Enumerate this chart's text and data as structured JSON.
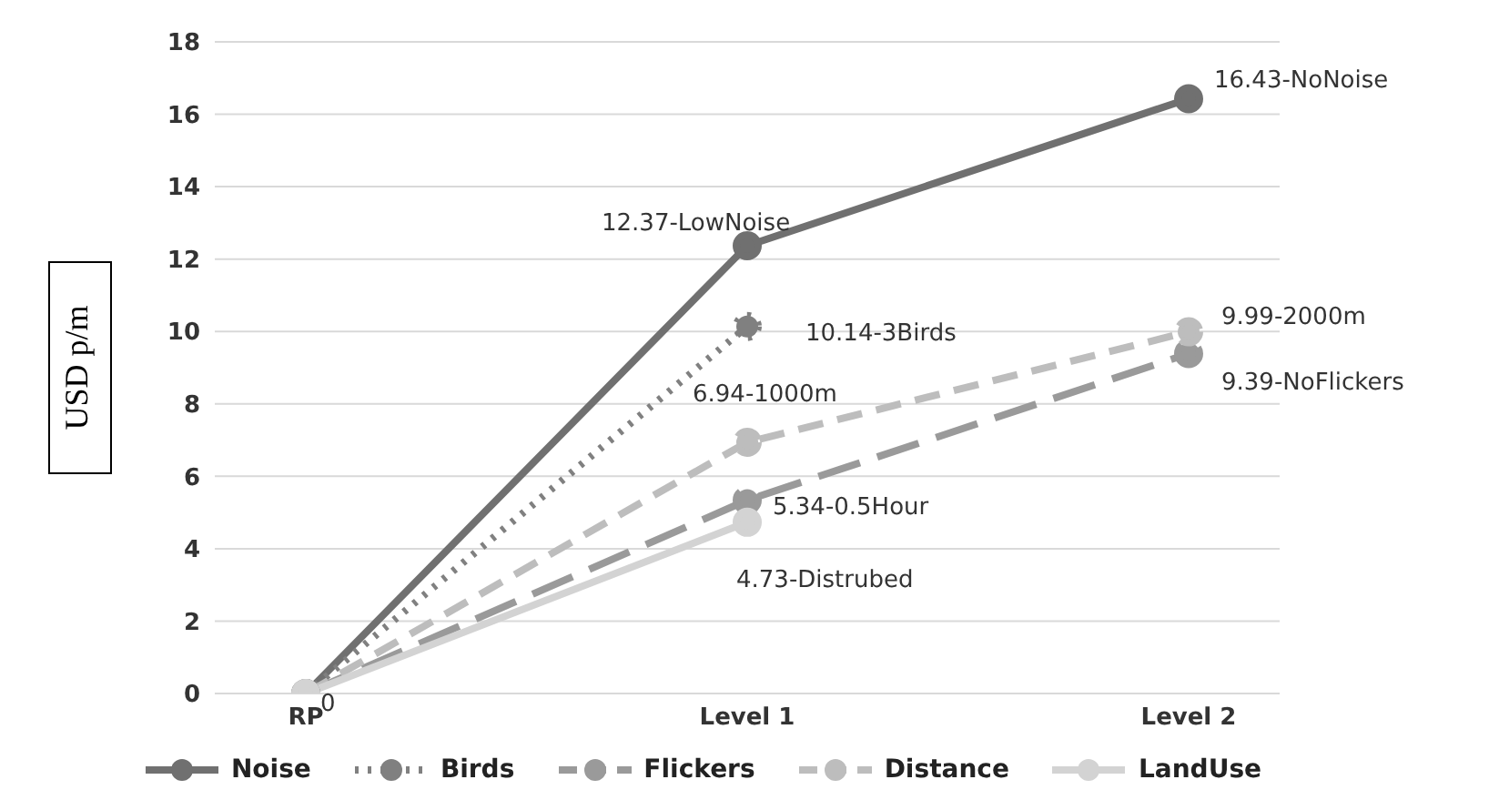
{
  "chart_data": {
    "type": "line",
    "ylabel": "USD p/m",
    "categories": [
      "RP",
      "Level 1",
      "Level 2"
    ],
    "series": [
      {
        "name": "Noise",
        "color": "#707070",
        "values": [
          0,
          12.37,
          16.43
        ],
        "line_style": "solid"
      },
      {
        "name": "Birds",
        "color": "#808080",
        "values": [
          0,
          10.14,
          null
        ],
        "line_style": "dotted"
      },
      {
        "name": "Flickers",
        "color": "#9a9a9a",
        "values": [
          0,
          5.34,
          9.39
        ],
        "line_style": "dashed"
      },
      {
        "name": "Distance",
        "color": "#bdbdbd",
        "values": [
          0,
          6.94,
          9.99
        ],
        "line_style": "dashed"
      },
      {
        "name": "LandUse",
        "color": "#d3d3d3",
        "values": [
          0,
          4.73,
          null
        ],
        "line_style": "solid"
      }
    ],
    "ylim": [
      0,
      18
    ],
    "yticks": [
      0,
      2,
      4,
      6,
      8,
      10,
      12,
      14,
      16,
      18
    ],
    "grid": "y",
    "legend": "bottom",
    "marker": "circle",
    "annotations": [
      {
        "text": "0",
        "x": "RP",
        "y": 0
      },
      {
        "text": "12.37-LowNoise",
        "x": "Level 1",
        "y": 12.37
      },
      {
        "text": "16.43-NoNoise",
        "x": "Level 2",
        "y": 16.43
      },
      {
        "text": "10.14-3Birds",
        "x": "Level 1",
        "y": 10.14
      },
      {
        "text": "6.94-1000m",
        "x": "Level 1",
        "y": 6.94
      },
      {
        "text": "5.34-0.5Hour",
        "x": "Level 1",
        "y": 5.34
      },
      {
        "text": "4.73-Distrubed",
        "x": "Level 1",
        "y": 4.73
      },
      {
        "text": "9.99-2000m",
        "x": "Level 2",
        "y": 9.99
      },
      {
        "text": "9.39-NoFlickers",
        "x": "Level 2",
        "y": 9.39
      }
    ]
  }
}
